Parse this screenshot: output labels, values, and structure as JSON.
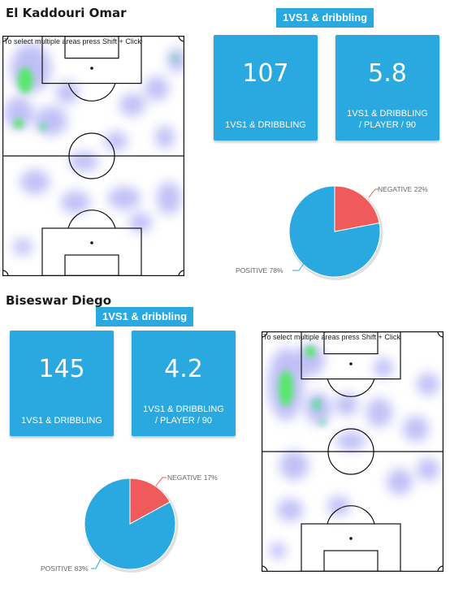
{
  "players": [
    {
      "name": "El Kaddouri Omar",
      "tag": "1VS1 & dribbling",
      "hint": "To select multiple areas press Shift + Click",
      "total_value": "107",
      "total_label": "1VS1 & DRIBBLING",
      "per90_value": "5.8",
      "per90_label_line1": "1VS1 & DRIBBLING",
      "per90_label_line2": "/ PLAYER / 90",
      "pie": {
        "negative_label": "NEGATIVE 22%",
        "positive_label": "POSITIVE 78%",
        "negative_pct": 22,
        "positive_pct": 78,
        "negative_color": "#ef5a5a",
        "positive_color": "#29a9e0"
      }
    },
    {
      "name": "Biseswar Diego",
      "tag": "1VS1 & dribbling",
      "hint": "To select multiple areas press Shift + Click",
      "total_value": "145",
      "total_label": "1VS1 & DRIBBLING",
      "per90_value": "4.2",
      "per90_label_line1": "1VS1 & DRIBBLING",
      "per90_label_line2": "/ PLAYER / 90",
      "pie": {
        "negative_label": "NEGATIVE 17%",
        "positive_label": "POSITIVE 83%",
        "negative_pct": 17,
        "positive_pct": 83,
        "negative_color": "#ef5a5a",
        "positive_color": "#29a9e0"
      }
    }
  ],
  "colors": {
    "accent": "#29a9e0",
    "heat_low": "#8c8cf0",
    "heat_high": "#55e86a"
  }
}
